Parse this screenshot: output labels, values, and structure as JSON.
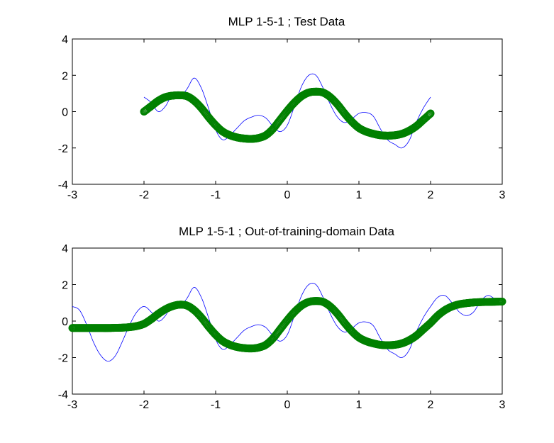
{
  "figure": {
    "background": "#ffffff"
  },
  "chart_data": [
    {
      "type": "line",
      "title": "MLP 1-5-1 ; Test Data",
      "xlabel": "",
      "ylabel": "",
      "xlim": [
        -3,
        3
      ],
      "ylim": [
        -4,
        4
      ],
      "xticks": [
        -3,
        -2,
        -1,
        0,
        1,
        2,
        3
      ],
      "yticks": [
        -4,
        -2,
        0,
        2,
        4
      ],
      "xtick_labels": [
        "-3",
        "-2",
        "-1",
        "0",
        "1",
        "2",
        "3"
      ],
      "ytick_labels": [
        "-4",
        "-2",
        "0",
        "2",
        "4"
      ],
      "grid": false,
      "series": [
        {
          "kind": "line",
          "color": "#0000ff",
          "x": [
            -2.0,
            -1.9,
            -1.8,
            -1.7,
            -1.6,
            -1.5,
            -1.4,
            -1.3,
            -1.2,
            -1.1,
            -1.0,
            -0.9,
            -0.8,
            -0.7,
            -0.6,
            -0.5,
            -0.4,
            -0.3,
            -0.2,
            -0.1,
            0.0,
            0.1,
            0.2,
            0.3,
            0.4,
            0.5,
            0.6,
            0.7,
            0.8,
            0.9,
            1.0,
            1.1,
            1.2,
            1.3,
            1.4,
            1.5,
            1.6,
            1.7,
            1.8,
            1.9,
            2.0
          ],
          "y": [
            0.8,
            0.5,
            0.0,
            0.3,
            0.95,
            0.8,
            1.25,
            1.85,
            1.3,
            0.2,
            -1.0,
            -1.55,
            -1.3,
            -0.9,
            -0.5,
            -0.3,
            -0.2,
            -0.35,
            -0.8,
            -1.1,
            -0.75,
            0.3,
            1.4,
            2.0,
            2.0,
            1.3,
            0.4,
            -0.3,
            -0.6,
            -0.4,
            -0.1,
            -0.05,
            -0.25,
            -0.95,
            -1.55,
            -1.8,
            -2.0,
            -1.6,
            -0.6,
            0.2,
            0.8
          ]
        },
        {
          "kind": "markers",
          "marker": "circle",
          "color": "#008000",
          "x": [
            -2.0,
            -1.9,
            -1.8,
            -1.7,
            -1.6,
            -1.5,
            -1.4,
            -1.3,
            -1.2,
            -1.1,
            -1.0,
            -0.9,
            -0.8,
            -0.7,
            -0.6,
            -0.5,
            -0.4,
            -0.3,
            -0.2,
            -0.1,
            0.0,
            0.1,
            0.2,
            0.3,
            0.4,
            0.5,
            0.6,
            0.7,
            0.8,
            0.9,
            1.0,
            1.1,
            1.2,
            1.3,
            1.4,
            1.5,
            1.6,
            1.7,
            1.8,
            1.9,
            2.0
          ],
          "y": [
            0.0,
            0.3,
            0.6,
            0.8,
            0.88,
            0.9,
            0.85,
            0.6,
            0.2,
            -0.3,
            -0.75,
            -1.1,
            -1.3,
            -1.42,
            -1.48,
            -1.5,
            -1.45,
            -1.3,
            -0.95,
            -0.45,
            0.05,
            0.5,
            0.85,
            1.05,
            1.1,
            1.05,
            0.8,
            0.4,
            -0.1,
            -0.55,
            -0.9,
            -1.1,
            -1.22,
            -1.3,
            -1.32,
            -1.3,
            -1.22,
            -1.05,
            -0.8,
            -0.45,
            -0.1
          ]
        }
      ]
    },
    {
      "type": "line",
      "title": "MLP 1-5-1 ; Out-of-training-domain Data",
      "xlabel": "",
      "ylabel": "",
      "xlim": [
        -3,
        3
      ],
      "ylim": [
        -4,
        4
      ],
      "xticks": [
        -3,
        -2,
        -1,
        0,
        1,
        2,
        3
      ],
      "yticks": [
        -4,
        -2,
        0,
        2,
        4
      ],
      "xtick_labels": [
        "-3",
        "-2",
        "-1",
        "0",
        "1",
        "2",
        "3"
      ],
      "ytick_labels": [
        "-4",
        "-2",
        "0",
        "2",
        "4"
      ],
      "grid": false,
      "series": [
        {
          "kind": "line",
          "color": "#0000ff",
          "x": [
            -3.0,
            -2.9,
            -2.8,
            -2.7,
            -2.6,
            -2.5,
            -2.4,
            -2.3,
            -2.2,
            -2.1,
            -2.0,
            -1.9,
            -1.8,
            -1.7,
            -1.6,
            -1.5,
            -1.4,
            -1.3,
            -1.2,
            -1.1,
            -1.0,
            -0.9,
            -0.8,
            -0.7,
            -0.6,
            -0.5,
            -0.4,
            -0.3,
            -0.2,
            -0.1,
            0.0,
            0.1,
            0.2,
            0.3,
            0.4,
            0.5,
            0.6,
            0.7,
            0.8,
            0.9,
            1.0,
            1.1,
            1.2,
            1.3,
            1.4,
            1.5,
            1.6,
            1.7,
            1.8,
            1.9,
            2.0,
            2.1,
            2.2,
            2.3,
            2.4,
            2.5,
            2.6,
            2.7,
            2.8,
            2.9,
            3.0
          ],
          "y": [
            0.8,
            0.6,
            -0.2,
            -1.2,
            -1.9,
            -2.2,
            -1.9,
            -1.1,
            -0.2,
            0.5,
            0.8,
            0.5,
            0.0,
            0.3,
            0.95,
            0.8,
            1.25,
            1.85,
            1.3,
            0.2,
            -1.0,
            -1.55,
            -1.3,
            -0.9,
            -0.5,
            -0.3,
            -0.2,
            -0.35,
            -0.8,
            -1.1,
            -0.75,
            0.3,
            1.4,
            2.0,
            2.0,
            1.3,
            0.4,
            -0.3,
            -0.6,
            -0.4,
            -0.1,
            -0.05,
            -0.25,
            -0.95,
            -1.55,
            -1.8,
            -2.0,
            -1.6,
            -0.6,
            0.2,
            0.8,
            1.3,
            1.4,
            1.0,
            0.5,
            0.3,
            0.5,
            1.1,
            1.4,
            1.2,
            0.9
          ]
        },
        {
          "kind": "markers",
          "marker": "circle",
          "color": "#008000",
          "x": [
            -3.0,
            -2.9,
            -2.8,
            -2.7,
            -2.6,
            -2.5,
            -2.4,
            -2.3,
            -2.2,
            -2.1,
            -2.0,
            -1.9,
            -1.8,
            -1.7,
            -1.6,
            -1.5,
            -1.4,
            -1.3,
            -1.2,
            -1.1,
            -1.0,
            -0.9,
            -0.8,
            -0.7,
            -0.6,
            -0.5,
            -0.4,
            -0.3,
            -0.2,
            -0.1,
            0.0,
            0.1,
            0.2,
            0.3,
            0.4,
            0.5,
            0.6,
            0.7,
            0.8,
            0.9,
            1.0,
            1.1,
            1.2,
            1.3,
            1.4,
            1.5,
            1.6,
            1.7,
            1.8,
            1.9,
            2.0,
            2.1,
            2.2,
            2.3,
            2.4,
            2.5,
            2.6,
            2.7,
            2.8,
            2.9,
            3.0
          ],
          "y": [
            -0.38,
            -0.38,
            -0.38,
            -0.38,
            -0.38,
            -0.38,
            -0.37,
            -0.36,
            -0.33,
            -0.27,
            -0.15,
            0.1,
            0.4,
            0.65,
            0.82,
            0.9,
            0.85,
            0.6,
            0.2,
            -0.3,
            -0.75,
            -1.1,
            -1.3,
            -1.42,
            -1.48,
            -1.5,
            -1.45,
            -1.3,
            -0.95,
            -0.45,
            0.05,
            0.5,
            0.85,
            1.05,
            1.1,
            1.05,
            0.8,
            0.4,
            -0.1,
            -0.55,
            -0.9,
            -1.1,
            -1.22,
            -1.3,
            -1.32,
            -1.3,
            -1.22,
            -1.05,
            -0.8,
            -0.45,
            -0.1,
            0.3,
            0.6,
            0.8,
            0.92,
            0.98,
            1.02,
            1.04,
            1.05,
            1.06,
            1.07
          ]
        }
      ]
    }
  ]
}
